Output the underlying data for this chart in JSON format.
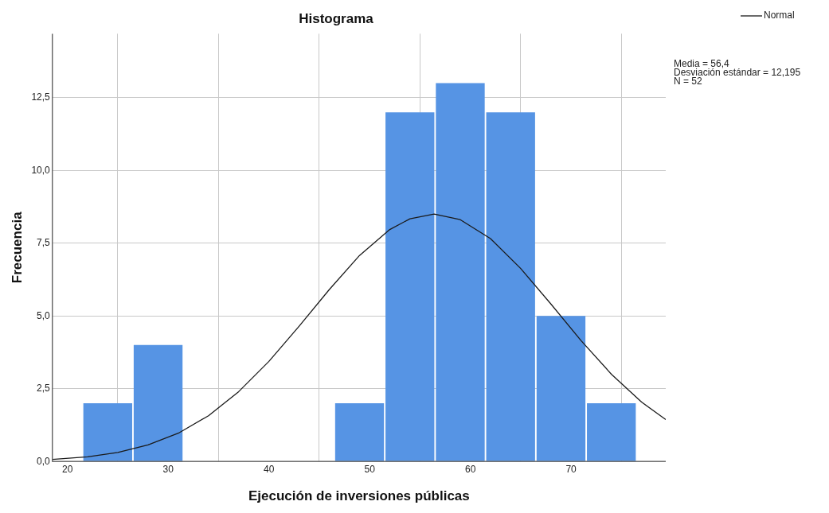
{
  "chart_data": {
    "type": "histogram",
    "title": "Histograma",
    "xlabel": "Ejecución de inversiones públicas",
    "ylabel": "Frecuencia",
    "xlim": [
      18.5,
      79.4
    ],
    "xticks": [
      20,
      30,
      40,
      50,
      60,
      70
    ],
    "ylim": [
      0,
      14.7
    ],
    "yticks": [
      {
        "value": 0,
        "label": "0,0"
      },
      {
        "value": 2.5,
        "label": "2,5"
      },
      {
        "value": 5,
        "label": "5,0"
      },
      {
        "value": 7.5,
        "label": "7,5"
      },
      {
        "value": 10,
        "label": "10,0"
      },
      {
        "value": 12.5,
        "label": "12,5"
      }
    ],
    "grid": true,
    "legend": "top right",
    "series": [
      {
        "color": "#5694e4",
        "bins": [
          21.5,
          26.5,
          31.5,
          36.5,
          41.5,
          46.5,
          51.5,
          56.5,
          61.5,
          66.5,
          71.5,
          76.5
        ],
        "values": [
          2,
          4,
          0,
          0,
          0,
          2,
          12,
          13,
          12,
          5,
          2
        ]
      },
      {
        "type": "line",
        "name": "Normal",
        "color": "#1a1a1a",
        "x": [
          18.5,
          22,
          25,
          28,
          31,
          34,
          37,
          40,
          43,
          46,
          49,
          52,
          54,
          56.4,
          59,
          62,
          65,
          68,
          71,
          74,
          77,
          79.4
        ],
        "values": [
          0.07,
          0.16,
          0.31,
          0.57,
          0.97,
          1.57,
          2.4,
          3.44,
          4.65,
          5.91,
          7.08,
          7.97,
          8.34,
          8.5,
          8.31,
          7.66,
          6.63,
          5.41,
          4.15,
          3.0,
          2.04,
          1.44
        ]
      }
    ],
    "annotations": [
      "Media = 56,4",
      "Desviación estándar = 12,195",
      "N = 52"
    ]
  }
}
